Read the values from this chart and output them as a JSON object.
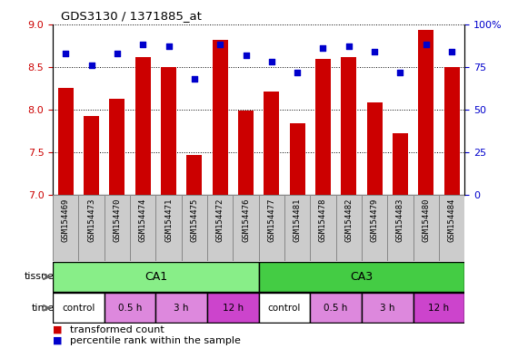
{
  "title": "GDS3130 / 1371885_at",
  "samples": [
    "GSM154469",
    "GSM154473",
    "GSM154470",
    "GSM154474",
    "GSM154471",
    "GSM154475",
    "GSM154472",
    "GSM154476",
    "GSM154477",
    "GSM154481",
    "GSM154478",
    "GSM154482",
    "GSM154479",
    "GSM154483",
    "GSM154480",
    "GSM154484"
  ],
  "transformed_count": [
    8.25,
    7.93,
    8.13,
    8.62,
    8.5,
    7.47,
    8.82,
    7.99,
    8.21,
    7.84,
    8.6,
    8.62,
    8.08,
    7.72,
    8.93,
    8.5
  ],
  "percentile_rank": [
    83,
    76,
    83,
    88,
    87,
    68,
    88,
    82,
    78,
    72,
    86,
    87,
    84,
    72,
    88,
    84
  ],
  "ylim_left": [
    7,
    9
  ],
  "ylim_right": [
    0,
    100
  ],
  "yticks_left": [
    7,
    7.5,
    8,
    8.5,
    9
  ],
  "yticks_right": [
    0,
    25,
    50,
    75,
    100
  ],
  "ytick_labels_right": [
    "0",
    "25",
    "50",
    "75",
    "100%"
  ],
  "bar_color": "#cc0000",
  "dot_color": "#0000cc",
  "tissue_labels": [
    "CA1",
    "CA3"
  ],
  "tissue_color": "#88ee88",
  "tissue_color2": "#44cc44",
  "time_colors": [
    "#ffffff",
    "#dd88dd",
    "#dd88dd",
    "#cc44cc",
    "#ffffff",
    "#dd88dd",
    "#dd88dd",
    "#cc44cc"
  ],
  "time_labels": [
    "control",
    "0.5 h",
    "3 h",
    "12 h",
    "control",
    "0.5 h",
    "3 h",
    "12 h"
  ],
  "bg_color": "#ffffff",
  "tick_label_color_left": "#cc0000",
  "tick_label_color_right": "#0000cc",
  "bar_width": 0.6,
  "xtick_bg": "#cccccc"
}
